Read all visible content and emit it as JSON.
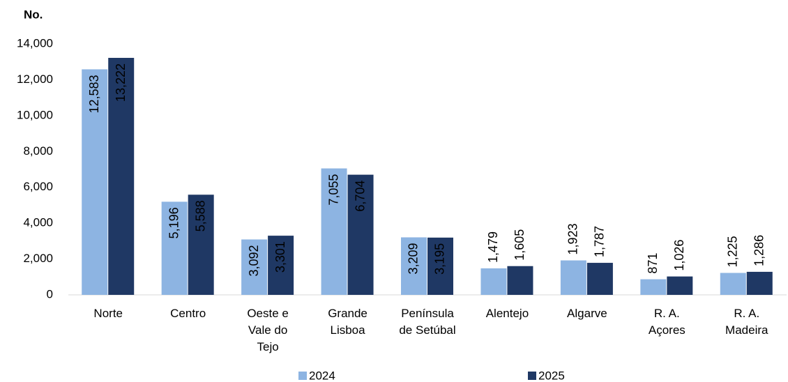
{
  "chart_data": {
    "type": "bar",
    "ylabel": "No.",
    "categories": [
      "Norte",
      "Centro",
      "Oeste e\nVale do\nTejo",
      "Grande\nLisboa",
      "Península\nde Setúbal",
      "Alentejo",
      "Algarve",
      "R. A.\nAçores",
      "R. A.\nMadeira"
    ],
    "series": [
      {
        "name": "2024",
        "color": "#8db4e2",
        "values": [
          12583,
          5196,
          3092,
          7055,
          3209,
          1479,
          1923,
          871,
          1225
        ],
        "value_labels": [
          "12,583",
          "5,196",
          "3,092",
          "7,055",
          "3,209",
          "1,479",
          "1,923",
          "871",
          "1,225"
        ]
      },
      {
        "name": "2025",
        "color": "#1f3864",
        "values": [
          13222,
          5588,
          3301,
          6704,
          3195,
          1605,
          1787,
          1026,
          1286
        ],
        "value_labels": [
          "13,222",
          "5,588",
          "3,301",
          "6,704",
          "3,195",
          "1,605",
          "1,787",
          "1,026",
          "1,286"
        ]
      }
    ],
    "ylim": [
      0,
      14000
    ],
    "yticks": [
      0,
      {
        "value": 2000,
        "label": "2,000"
      },
      {
        "value": 4000,
        "label": "4,000"
      },
      {
        "value": 6000,
        "label": "6,000"
      },
      {
        "value": 8000,
        "label": "8,000"
      },
      {
        "value": 10000,
        "label": "10,000"
      },
      {
        "value": 12000,
        "label": "12,000"
      },
      {
        "value": 14000,
        "label": "14,000"
      }
    ],
    "grid": false,
    "legend": "bottom"
  }
}
